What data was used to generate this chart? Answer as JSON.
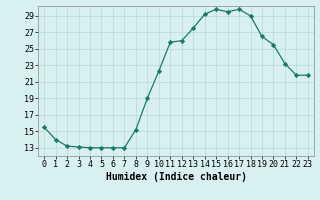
{
  "x": [
    0,
    1,
    2,
    3,
    4,
    5,
    6,
    7,
    8,
    9,
    10,
    11,
    12,
    13,
    14,
    15,
    16,
    17,
    18,
    19,
    20,
    21,
    22,
    23
  ],
  "y": [
    15.5,
    14.0,
    13.2,
    13.1,
    13.0,
    13.0,
    13.0,
    13.0,
    15.2,
    19.0,
    22.3,
    25.8,
    26.0,
    27.5,
    29.2,
    29.8,
    29.5,
    29.8,
    29.0,
    26.5,
    25.5,
    23.2,
    21.8,
    21.8
  ],
  "line_color": "#1a7a6a",
  "marker": "D",
  "marker_size": 2.2,
  "bg_color": "#d8f0f0",
  "grid_color": "#b8d8d8",
  "xlabel": "Humidex (Indice chaleur)",
  "xlim": [
    -0.5,
    23.5
  ],
  "ylim": [
    12,
    30.2
  ],
  "yticks": [
    13,
    15,
    17,
    19,
    21,
    23,
    25,
    27,
    29
  ],
  "xticks": [
    0,
    1,
    2,
    3,
    4,
    5,
    6,
    7,
    8,
    9,
    10,
    11,
    12,
    13,
    14,
    15,
    16,
    17,
    18,
    19,
    20,
    21,
    22,
    23
  ],
  "tick_fontsize": 6.0,
  "xlabel_fontsize": 7.0
}
